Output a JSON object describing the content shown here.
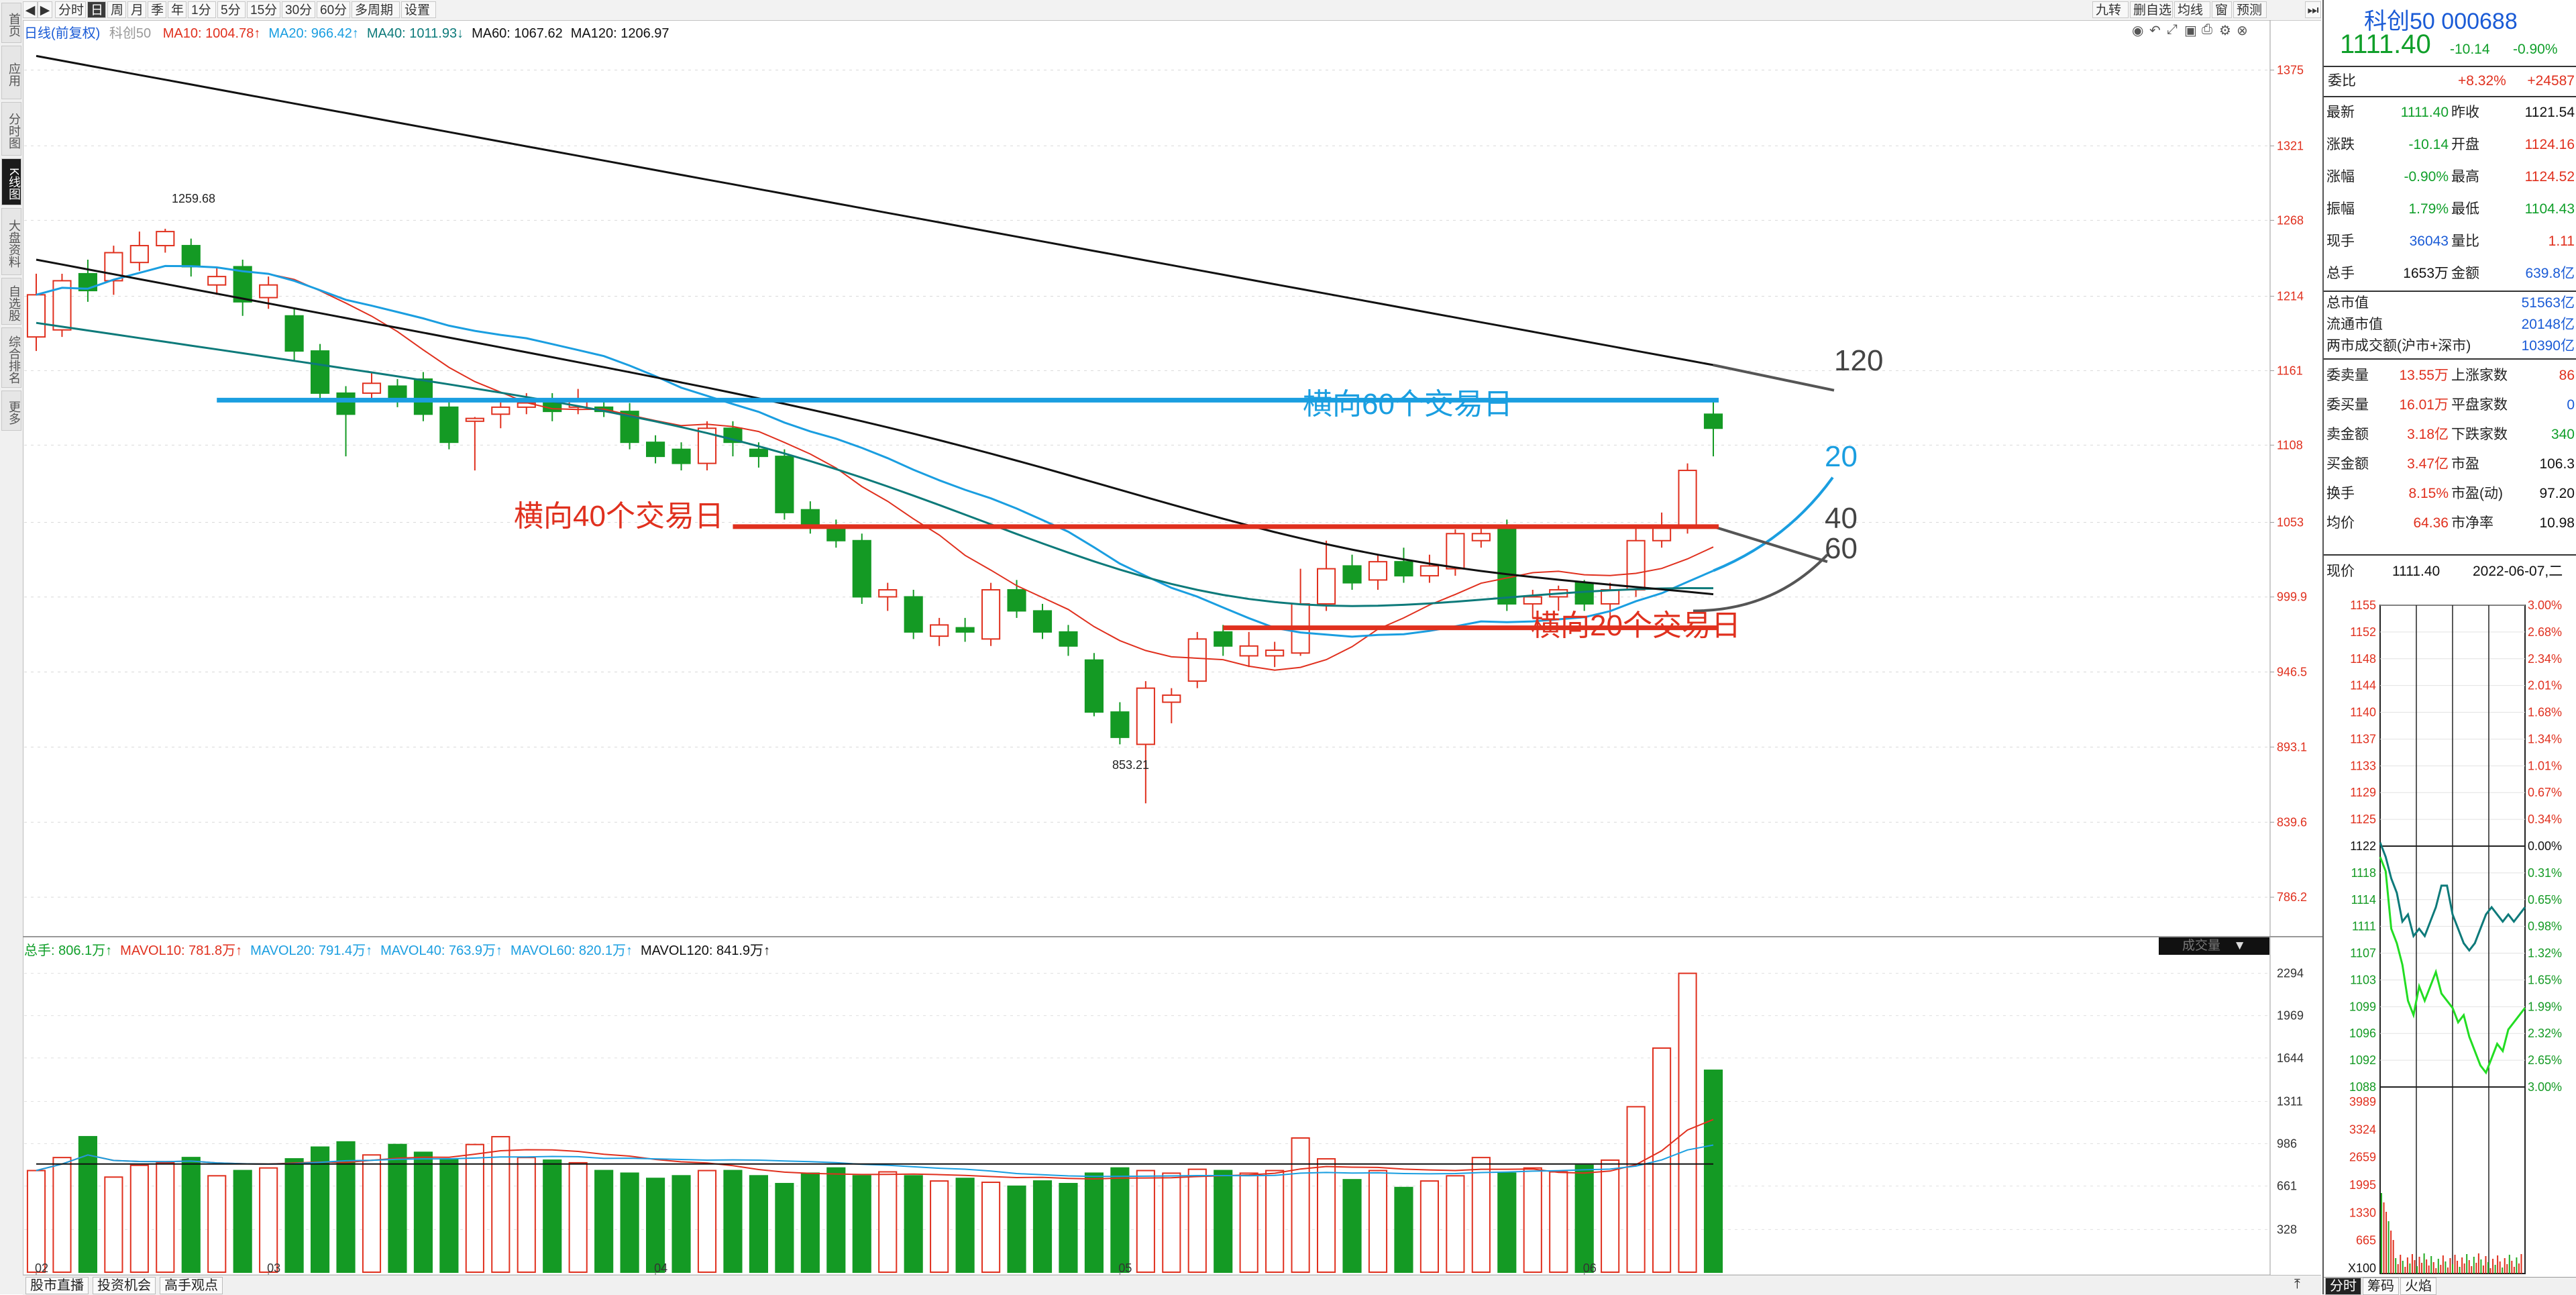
{
  "left_toolbar": [
    {
      "label": "首页",
      "active": false
    },
    {
      "label": "应用",
      "active": false
    },
    {
      "label": "分时图",
      "active": false
    },
    {
      "label": "K线图",
      "active": true
    },
    {
      "label": "大盘资料",
      "active": false
    },
    {
      "label": "自选股",
      "active": false
    },
    {
      "label": "综合排名",
      "active": false
    },
    {
      "label": "更多",
      "active": false
    }
  ],
  "top_toolbar": {
    "periods": [
      "分时",
      "日",
      "周",
      "月",
      "季",
      "年",
      "1分",
      "5分",
      "15分",
      "30分",
      "60分",
      "多周期",
      "设置"
    ],
    "active_period": "日",
    "right_buttons": [
      "九转",
      "删自选",
      "均线",
      "窗",
      "预测"
    ],
    "window_icons": [
      "eye-icon",
      "back-icon",
      "zoom-icon",
      "lock-icon",
      "print-icon",
      "settings-icon",
      "close-icon"
    ]
  },
  "main_legend": {
    "title": "日线(前复权)",
    "security": "科创50",
    "ma": [
      {
        "label": "MA10: 1004.78",
        "arrow": "↑",
        "color": "#e0301e"
      },
      {
        "label": "MA20: 966.42",
        "arrow": "↑",
        "color": "#1a9ee0"
      },
      {
        "label": "MA40: 1011.93",
        "arrow": "↓",
        "color": "#0d7a7a"
      },
      {
        "label": "MA60: 1067.62",
        "arrow": "",
        "color": "#111111"
      },
      {
        "label": "MA120: 1206.97",
        "arrow": "",
        "color": "#111111"
      }
    ]
  },
  "vol_legend": {
    "items": [
      {
        "label": "总手: 806.1万",
        "arrow": "↑",
        "color": "#109f2a"
      },
      {
        "label": "MAVOL10: 781.8万",
        "arrow": "↑",
        "color": "#e0301e"
      },
      {
        "label": "MAVOL20: 791.4万",
        "arrow": "↑",
        "color": "#1a9ee0"
      },
      {
        "label": "MAVOL40: 763.9万",
        "arrow": "↑",
        "color": "#1a9ee0"
      },
      {
        "label": "MAVOL60: 820.1万",
        "arrow": "↑",
        "color": "#1a9ee0"
      },
      {
        "label": "MAVOL120: 841.9万",
        "arrow": "↑",
        "color": "#111111"
      }
    ],
    "dropdown": "成交量"
  },
  "price_axis": [
    "1375",
    "1321",
    "1268",
    "1214",
    "1161",
    "1108",
    "1053",
    "999.9",
    "946.5",
    "893.1",
    "839.6",
    "786.2"
  ],
  "vol_axis": [
    "2294",
    "1969",
    "1644",
    "1311",
    "986",
    "661",
    "328"
  ],
  "x_axis": [
    "02",
    "03",
    "04",
    "05",
    "06"
  ],
  "annotations": {
    "h60": "横向60个交易日",
    "h40": "横向40个交易日",
    "h20": "横向20个交易日",
    "l120": "120",
    "l20": "20",
    "l40": "40",
    "l60": "60",
    "high_label": "1259.68",
    "low_label": "853.21"
  },
  "chart_data": {
    "type": "candlestick",
    "price_range": [
      760,
      1400
    ],
    "volume_range": [
      0,
      2400
    ],
    "candles": [
      [
        1185,
        1215,
        1230,
        1175,
        "up",
        780
      ],
      [
        1190,
        1225,
        1230,
        1185,
        "up",
        880
      ],
      [
        1230,
        1218,
        1240,
        1210,
        "dn",
        1040
      ],
      [
        1225,
        1245,
        1250,
        1215,
        "up",
        730
      ],
      [
        1238,
        1250,
        1260,
        1232,
        "up",
        820
      ],
      [
        1250,
        1260,
        1262,
        1245,
        "up",
        840
      ],
      [
        1250,
        1235,
        1255,
        1228,
        "dn",
        880
      ],
      [
        1222,
        1228,
        1234,
        1215,
        "up",
        740
      ],
      [
        1235,
        1210,
        1240,
        1200,
        "dn",
        780
      ],
      [
        1222,
        1213,
        1228,
        1205,
        "up",
        800
      ],
      [
        1200,
        1175,
        1205,
        1168,
        "dn",
        870
      ],
      [
        1175,
        1145,
        1180,
        1140,
        "dn",
        960
      ],
      [
        1145,
        1130,
        1150,
        1100,
        "dn",
        1000
      ],
      [
        1145,
        1152,
        1160,
        1140,
        "up",
        900
      ],
      [
        1150,
        1140,
        1155,
        1135,
        "dn",
        980
      ],
      [
        1155,
        1130,
        1160,
        1125,
        "dn",
        920
      ],
      [
        1135,
        1110,
        1140,
        1105,
        "dn",
        870
      ],
      [
        1125,
        1127,
        1128,
        1090,
        "up",
        980
      ],
      [
        1130,
        1135,
        1140,
        1120,
        "up",
        1040
      ],
      [
        1135,
        1138,
        1145,
        1130,
        "up",
        880
      ],
      [
        1138,
        1132,
        1145,
        1125,
        "dn",
        860
      ],
      [
        1135,
        1140,
        1148,
        1130,
        "up",
        840
      ],
      [
        1135,
        1132,
        1140,
        1128,
        "dn",
        780
      ],
      [
        1132,
        1110,
        1138,
        1105,
        "dn",
        760
      ],
      [
        1110,
        1100,
        1115,
        1095,
        "dn",
        720
      ],
      [
        1105,
        1095,
        1110,
        1090,
        "dn",
        740
      ],
      [
        1095,
        1120,
        1125,
        1090,
        "up",
        780
      ],
      [
        1120,
        1110,
        1125,
        1100,
        "dn",
        780
      ],
      [
        1105,
        1100,
        1110,
        1092,
        "dn",
        740
      ],
      [
        1100,
        1060,
        1105,
        1055,
        "dn",
        680
      ],
      [
        1062,
        1050,
        1068,
        1045,
        "dn",
        760
      ],
      [
        1050,
        1040,
        1055,
        1035,
        "dn",
        800
      ],
      [
        1040,
        1000,
        1045,
        995,
        "dn",
        740
      ],
      [
        1000,
        1005,
        1010,
        990,
        "up",
        770
      ],
      [
        1000,
        975,
        1005,
        970,
        "dn",
        740
      ],
      [
        972,
        980,
        985,
        965,
        "up",
        700
      ],
      [
        978,
        975,
        985,
        968,
        "dn",
        720
      ],
      [
        970,
        1005,
        1010,
        965,
        "up",
        690
      ],
      [
        1005,
        990,
        1012,
        985,
        "dn",
        660
      ],
      [
        990,
        975,
        995,
        970,
        "dn",
        700
      ],
      [
        975,
        965,
        980,
        958,
        "dn",
        680
      ],
      [
        955,
        918,
        960,
        915,
        "dn",
        760
      ],
      [
        918,
        900,
        925,
        895,
        "dn",
        800
      ],
      [
        895,
        935,
        940,
        853,
        "up",
        780
      ],
      [
        925,
        930,
        935,
        910,
        "up",
        760
      ],
      [
        940,
        970,
        975,
        935,
        "up",
        790
      ],
      [
        975,
        965,
        980,
        958,
        "dn",
        780
      ],
      [
        965,
        958,
        975,
        950,
        "up",
        760
      ],
      [
        958,
        962,
        968,
        950,
        "up",
        780
      ],
      [
        960,
        995,
        1020,
        958,
        "up",
        1030
      ],
      [
        995,
        1020,
        1040,
        990,
        "up",
        870
      ],
      [
        1022,
        1010,
        1030,
        1005,
        "dn",
        710
      ],
      [
        1012,
        1025,
        1030,
        1005,
        "up",
        780
      ],
      [
        1025,
        1015,
        1035,
        1010,
        "dn",
        650
      ],
      [
        1015,
        1022,
        1030,
        1010,
        "up",
        700
      ],
      [
        1020,
        1045,
        1048,
        1015,
        "up",
        740
      ],
      [
        1040,
        1045,
        1050,
        1035,
        "up",
        880
      ],
      [
        1048,
        995,
        1055,
        990,
        "dn",
        760
      ],
      [
        995,
        1000,
        1005,
        985,
        "up",
        800
      ],
      [
        1000,
        1005,
        1008,
        990,
        "up",
        770
      ],
      [
        1010,
        995,
        1012,
        990,
        "dn",
        820
      ],
      [
        995,
        1005,
        1010,
        985,
        "up",
        860
      ],
      [
        1005,
        1040,
        1050,
        1000,
        "up",
        1270
      ],
      [
        1040,
        1050,
        1060,
        1035,
        "up",
        1720
      ],
      [
        1050,
        1090,
        1095,
        1045,
        "up",
        2294
      ],
      [
        1120,
        1130,
        1140,
        1100,
        "dn",
        1550
      ]
    ]
  },
  "right_panel": {
    "name": "科创50",
    "code": "000688",
    "price": "1111.40",
    "change": "-10.14",
    "pct": "-0.90%",
    "webi_label": "委比",
    "webi_pct": "+8.32%",
    "webi_val": "+24587",
    "quote": [
      [
        "最新",
        "1111.40",
        "昨收",
        "1121.54",
        "dn",
        "blk"
      ],
      [
        "涨跌",
        "-10.14",
        "开盘",
        "1124.16",
        "dn",
        "up"
      ],
      [
        "涨幅",
        "-0.90%",
        "最高",
        "1124.52",
        "dn",
        "up"
      ],
      [
        "振幅",
        "1.79%",
        "最低",
        "1104.43",
        "dn",
        "dn"
      ],
      [
        "现手",
        "36043",
        "量比",
        "1.11",
        "bl",
        "up"
      ],
      [
        "总手",
        "1653万",
        "金额",
        "639.8亿",
        "blk",
        "bl"
      ]
    ],
    "mkt": [
      [
        "总市值",
        "51563亿"
      ],
      [
        "流通市值",
        "20148亿"
      ],
      [
        "两市成交额(沪市+深市)",
        "10390亿"
      ]
    ],
    "stats": [
      [
        "委卖量",
        "13.55万",
        "上涨家数",
        "86",
        "up",
        "up"
      ],
      [
        "委买量",
        "16.01万",
        "平盘家数",
        "0",
        "up",
        "bl"
      ],
      [
        "卖金额",
        "3.18亿",
        "下跌家数",
        "340",
        "up",
        "dn"
      ],
      [
        "买金额",
        "3.47亿",
        "市盈",
        "106.3",
        "up",
        "blk"
      ],
      [
        "换手",
        "8.15%",
        "市盈(动)",
        "97.20",
        "up",
        "blk"
      ],
      [
        "均价",
        "64.36",
        "市净率",
        "10.98",
        "up",
        "blk"
      ]
    ],
    "now_label": "现价",
    "now_price": "1111.40",
    "now_date": "2022-06-07,二",
    "mini_left_axis": [
      "1155",
      "1152",
      "1148",
      "1144",
      "1140",
      "1137",
      "1133",
      "1129",
      "1125",
      "1122",
      "1118",
      "1114",
      "1111",
      "1107",
      "1103",
      "1099",
      "1096",
      "1092",
      "1088"
    ],
    "mini_right_axis": [
      "3.00%",
      "2.68%",
      "2.34%",
      "2.01%",
      "1.68%",
      "1.34%",
      "1.01%",
      "0.67%",
      "0.34%",
      "0.00%",
      "0.31%",
      "0.65%",
      "0.98%",
      "1.32%",
      "1.65%",
      "1.99%",
      "2.32%",
      "2.65%",
      "3.00%"
    ],
    "mini_vol_axis": [
      "3989",
      "3324",
      "2659",
      "1995",
      "1330",
      "665",
      "X100"
    ],
    "bottom_tabs": [
      "分时",
      "筹码",
      "火焰"
    ]
  },
  "bottom_tabs": [
    "股市直播",
    "投资机会",
    "高手观点"
  ]
}
